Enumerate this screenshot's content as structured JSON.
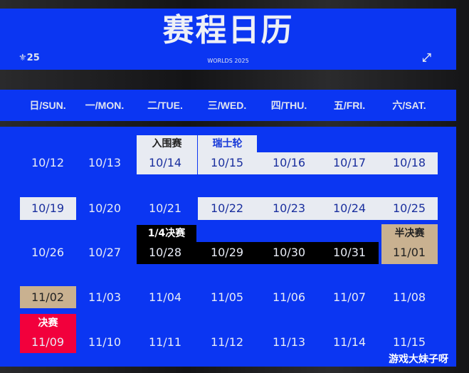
{
  "header": {
    "title": "赛程日历",
    "subtitle": "WORLDS 2025",
    "logo": "25",
    "expand_icon": "expand-icon"
  },
  "weekdays": [
    "日/SUN.",
    "一/MON.",
    "二/TUE.",
    "三/WED.",
    "四/THU.",
    "五/FRI.",
    "六/SAT."
  ],
  "weeks": [
    [
      "10/12",
      "10/13",
      "10/14",
      "10/15",
      "10/16",
      "10/17",
      "10/18"
    ],
    [
      "10/19",
      "10/20",
      "10/21",
      "10/22",
      "10/23",
      "10/24",
      "10/25"
    ],
    [
      "10/26",
      "10/27",
      "10/28",
      "10/29",
      "10/30",
      "10/31",
      "11/01"
    ],
    [
      "11/02",
      "11/03",
      "11/04",
      "11/05",
      "11/06",
      "11/07",
      "11/08"
    ],
    [
      "11/09",
      "11/10",
      "11/11",
      "11/12",
      "11/13",
      "11/14",
      "11/15"
    ]
  ],
  "stages": {
    "play_in": "入围赛",
    "swiss": "瑞士轮",
    "quarterfinals": "1/4决赛",
    "semifinals": "半决赛",
    "finals": "决赛"
  },
  "colors": {
    "primary": "#0b36f2",
    "play_in_swiss": "#e8ebf2",
    "quarterfinals": "#000000",
    "semifinals": "#c9b190",
    "finals": "#f2003c"
  },
  "watermark": "游戏大妹子呀"
}
